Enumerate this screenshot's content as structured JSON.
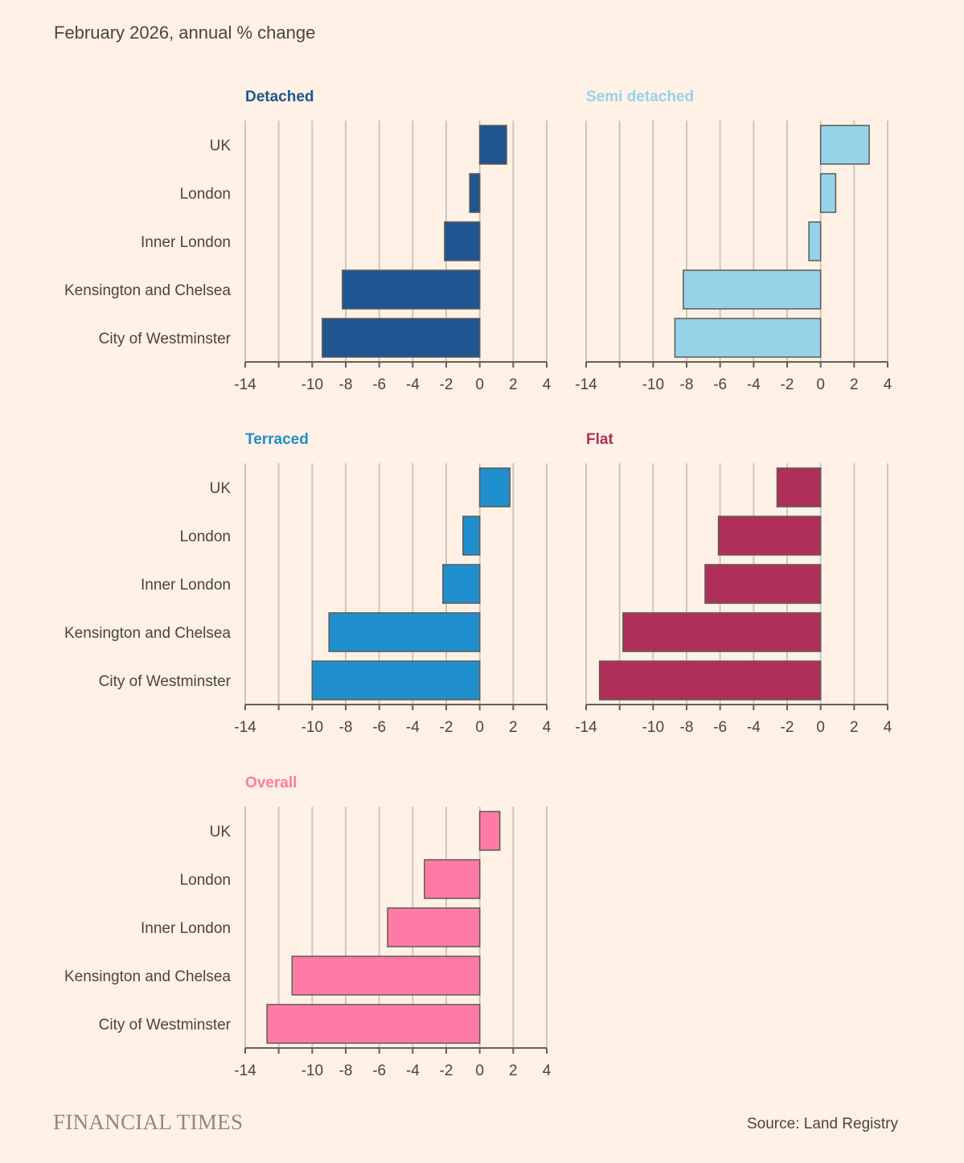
{
  "subtitle": "February 2026, annual % change",
  "source": "Source: Land Registry",
  "logo_text": "FINANCIAL TIMES",
  "colors": {
    "background": "#fff1e5",
    "grid": "#cec6bd",
    "axis": "#66605c",
    "text": "#4a4541",
    "bar_stroke": "#5f5a56"
  },
  "chart_data": {
    "type": "bar",
    "orientation": "horizontal",
    "categories": [
      "UK",
      "London",
      "Inner London",
      "Kensington and Chelsea",
      "City of Westminster"
    ],
    "xlim": [
      -14,
      4
    ],
    "xticks": [
      -14,
      -10,
      -8,
      -6,
      -4,
      -2,
      0,
      2,
      4
    ],
    "grid": true,
    "panels": [
      {
        "title": "Detached",
        "color": "#1f5591",
        "values": [
          1.6,
          -0.6,
          -2.1,
          -8.2,
          -9.4
        ]
      },
      {
        "title": "Semi detached",
        "color": "#96d3e8",
        "values": [
          2.9,
          0.9,
          -0.7,
          -8.2,
          -8.7
        ]
      },
      {
        "title": "Terraced",
        "color": "#1f8fce",
        "values": [
          1.8,
          -1.0,
          -2.2,
          -9.0,
          -10.0
        ]
      },
      {
        "title": "Flat",
        "color": "#b02f5a",
        "values": [
          -2.6,
          -6.1,
          -6.9,
          -11.8,
          -13.2
        ]
      },
      {
        "title": "Overall",
        "color": "#ff7aa5",
        "values": [
          1.2,
          -3.3,
          -5.5,
          -11.2,
          -12.7
        ]
      }
    ]
  }
}
